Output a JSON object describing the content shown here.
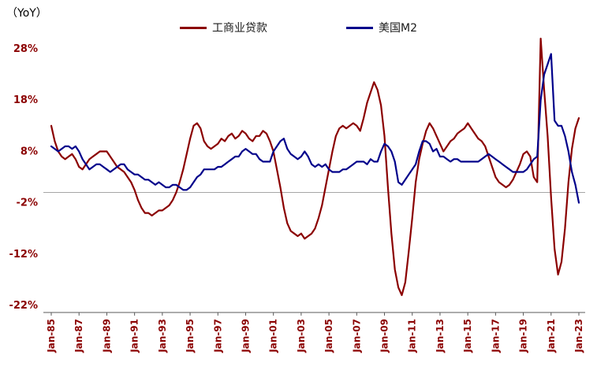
{
  "header": {
    "unit_label": "（YoY）"
  },
  "legend": {
    "items": [
      {
        "label": "工商业贷款",
        "color": "#8B0000"
      },
      {
        "label": "美国M2",
        "color": "#00008B"
      }
    ]
  },
  "chart_data": {
    "type": "line",
    "title": "",
    "ylabel": "（YoY）",
    "xlabel": "",
    "grid": false,
    "legend_position": "top-center",
    "ylim": [
      -22,
      28
    ],
    "y_ticks": [
      28,
      18,
      8,
      -2,
      -12,
      -22
    ],
    "y_tick_labels": [
      "28%",
      "18%",
      "8%",
      "-2%",
      "-12%",
      "-22%"
    ],
    "x_range": [
      1985,
      2023
    ],
    "x_tick_start": 1985,
    "x_tick_step": 2,
    "x_tick_labels": [
      "Jan-85",
      "Jan-87",
      "Jan-89",
      "Jan-91",
      "Jan-93",
      "Jan-95",
      "Jan-97",
      "Jan-99",
      "Jan-01",
      "Jan-03",
      "Jan-05",
      "Jan-07",
      "Jan-09",
      "Jan-11",
      "Jan-13",
      "Jan-15",
      "Jan-17",
      "Jan-19",
      "Jan-21",
      "Jan-23"
    ],
    "zero_line": 0,
    "axis_label_color": "#8B0000",
    "axis_line_color": "#595959",
    "zero_line_color": "#a6a6a6",
    "series": [
      {
        "name": "工商业贷款",
        "color": "#8B0000",
        "x_start": 1985.0,
        "x_step": 0.25,
        "values": [
          13,
          10,
          8,
          7,
          6.5,
          7,
          7.5,
          6.5,
          5,
          4.5,
          5.5,
          6.5,
          7,
          7.5,
          8,
          8,
          8,
          7,
          6,
          5,
          4.5,
          4,
          3,
          2,
          0.5,
          -1.5,
          -3,
          -4,
          -4,
          -4.5,
          -4,
          -3.5,
          -3.5,
          -3,
          -2.5,
          -1.5,
          0,
          2,
          4.5,
          7.5,
          10.5,
          13,
          13.5,
          12.5,
          10,
          9,
          8.5,
          9,
          9.5,
          10.5,
          10,
          11,
          11.5,
          10.5,
          11,
          12,
          11.5,
          10.5,
          10,
          11,
          11,
          12,
          11.5,
          10,
          8,
          4.5,
          1,
          -3,
          -6,
          -7.5,
          -8,
          -8.5,
          -8,
          -9,
          -8.5,
          -8,
          -7,
          -5,
          -2.5,
          1,
          4.5,
          8,
          11,
          12.5,
          13,
          12.5,
          13,
          13.5,
          13,
          12,
          14.5,
          17.5,
          19.5,
          21.5,
          20,
          17,
          11,
          1,
          -8,
          -15,
          -18.5,
          -20,
          -17.5,
          -11.5,
          -5,
          2,
          6.5,
          9.5,
          12,
          13.5,
          12.5,
          11,
          9.5,
          8,
          9,
          10,
          10.5,
          11.5,
          12,
          12.5,
          13.5,
          12.5,
          11.5,
          10.5,
          10,
          9,
          7,
          5,
          3,
          2,
          1.5,
          1,
          1.5,
          2.5,
          4,
          5.5,
          7.5,
          8,
          7,
          3,
          2,
          30,
          20,
          11,
          -1,
          -11,
          -16,
          -13.5,
          -7,
          2,
          8.5,
          12.5,
          14.5
        ]
      },
      {
        "name": "美国M2",
        "color": "#00008B",
        "x_start": 1985.0,
        "x_step": 0.25,
        "values": [
          9,
          8.5,
          8,
          8.5,
          9,
          9,
          8.5,
          9,
          8,
          6.5,
          5.5,
          4.5,
          5,
          5.5,
          5.5,
          5,
          4.5,
          4,
          4.5,
          5,
          5.5,
          5.5,
          4.5,
          4,
          3.5,
          3.5,
          3,
          2.5,
          2.5,
          2,
          1.5,
          2,
          1.5,
          1,
          1,
          1.5,
          1.5,
          1,
          0.5,
          0.5,
          1,
          2,
          3,
          3.5,
          4.5,
          4.5,
          4.5,
          4.5,
          5,
          5,
          5.5,
          6,
          6.5,
          7,
          7,
          8,
          8.5,
          8,
          7.5,
          7.5,
          6.5,
          6,
          6,
          6,
          8,
          9,
          10,
          10.5,
          8.5,
          7.5,
          7,
          6.5,
          7,
          8,
          7,
          5.5,
          5,
          5.5,
          5,
          5.5,
          4.5,
          4,
          4,
          4,
          4.5,
          4.5,
          5,
          5.5,
          6,
          6,
          6,
          5.5,
          6.5,
          6,
          6,
          8,
          9.5,
          9,
          8,
          6,
          2,
          1.5,
          2.5,
          3.5,
          4.5,
          5.5,
          8,
          10,
          10,
          9.5,
          8,
          8.5,
          7,
          7,
          6.5,
          6,
          6.5,
          6.5,
          6,
          6,
          6,
          6,
          6,
          6,
          6.5,
          7,
          7.5,
          7,
          6.5,
          6,
          5.5,
          5,
          4.5,
          4,
          4,
          4,
          4,
          4.5,
          5.5,
          6.5,
          7,
          18,
          23,
          25,
          27,
          14,
          13,
          13,
          11,
          8,
          4,
          1.5,
          -2
        ]
      }
    ]
  }
}
